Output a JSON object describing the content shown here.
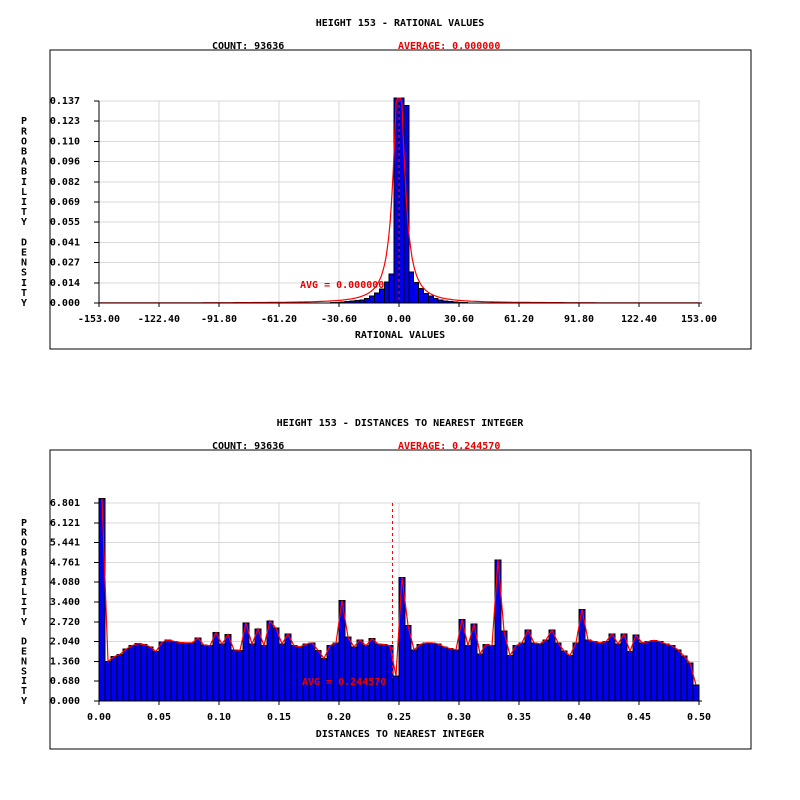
{
  "colors": {
    "background": "#ffffff",
    "bar_fill": "#0000ee",
    "bar_stroke": "#000000",
    "curve_red": "#ff0000",
    "accent_red": "#e80000",
    "grid_gray": "#d9d9d9",
    "axis_black": "#000000"
  },
  "chart_data": [
    {
      "type": "bar",
      "title": "HEIGHT 153 - RATIONAL VALUES",
      "count_label": "COUNT: 93636",
      "average_label": "AVERAGE: 0.000000",
      "avg_annotation": "AVG = 0.000000",
      "xlabel": "RATIONAL VALUES",
      "ylabel": "PROBABILITY DENSITY",
      "ylabel_words": [
        "PROBABILITY",
        "DENSITY"
      ],
      "x_ticks": [
        "-153.00",
        "-122.40",
        "-91.80",
        "-61.20",
        "-30.60",
        "0.00",
        "30.60",
        "61.20",
        "91.80",
        "122.40",
        "153.00"
      ],
      "y_ticks": [
        "0.137",
        "0.123",
        "0.110",
        "0.096",
        "0.082",
        "0.069",
        "0.055",
        "0.041",
        "0.027",
        "0.014",
        "0.000"
      ],
      "xlim": [
        -153,
        153
      ],
      "ylim": [
        0,
        0.137
      ],
      "grid": true,
      "legend": "none",
      "count": 93636,
      "average": 0.0,
      "bin_width": 2.5,
      "bars": [
        [
          -33.75,
          0.0003
        ],
        [
          -31.25,
          0.0005
        ],
        [
          -28.75,
          0.0007
        ],
        [
          -26.25,
          0.001
        ],
        [
          -23.75,
          0.0013
        ],
        [
          -21.25,
          0.0017
        ],
        [
          -18.75,
          0.0022
        ],
        [
          -16.25,
          0.003
        ],
        [
          -13.75,
          0.0046
        ],
        [
          -11.25,
          0.0068
        ],
        [
          -8.75,
          0.0095
        ],
        [
          -6.25,
          0.0142
        ],
        [
          -3.75,
          0.0196
        ],
        [
          -1.25,
          0.139
        ],
        [
          1.25,
          0.139
        ],
        [
          3.75,
          0.134
        ],
        [
          6.25,
          0.021
        ],
        [
          8.75,
          0.014
        ],
        [
          11.25,
          0.0098
        ],
        [
          13.75,
          0.0065
        ],
        [
          16.25,
          0.0046
        ],
        [
          18.75,
          0.0032
        ],
        [
          21.25,
          0.0022
        ],
        [
          23.75,
          0.0015
        ],
        [
          26.25,
          0.001
        ],
        [
          28.75,
          0.0007
        ],
        [
          31.25,
          0.0005
        ],
        [
          33.75,
          0.0003
        ]
      ],
      "curve": {
        "model": "cauchy",
        "amplitude": 0.165,
        "gamma": 3.2,
        "clip": 0.139,
        "follows_bars": false
      },
      "avg_line_x": 0.0
    },
    {
      "type": "bar",
      "title": "HEIGHT 153 - DISTANCES TO NEAREST INTEGER",
      "count_label": "COUNT: 93636",
      "average_label": "AVERAGE: 0.244570",
      "avg_annotation": "AVG = 0.244570",
      "xlabel": "DISTANCES TO NEAREST INTEGER",
      "ylabel": "PROBABILITY DENSITY",
      "ylabel_words": [
        "PROBABILITY",
        "DENSITY"
      ],
      "x_ticks": [
        "0.00",
        "0.05",
        "0.10",
        "0.15",
        "0.20",
        "0.25",
        "0.30",
        "0.35",
        "0.40",
        "0.45",
        "0.50"
      ],
      "y_ticks": [
        "6.801",
        "6.121",
        "5.441",
        "4.761",
        "4.080",
        "3.400",
        "2.720",
        "2.040",
        "1.360",
        "0.680",
        "0.000"
      ],
      "xlim": [
        0,
        0.5
      ],
      "ylim": [
        0,
        6.801
      ],
      "grid": true,
      "legend": "none",
      "count": 93636,
      "average": 0.24457,
      "bins_start": 0.0,
      "bin_width": 0.005,
      "values": [
        6.95,
        1.36,
        1.52,
        1.6,
        1.78,
        1.9,
        1.97,
        1.94,
        1.86,
        1.7,
        2.02,
        2.1,
        2.05,
        2.01,
        2.0,
        2.0,
        2.16,
        1.92,
        1.9,
        2.35,
        1.95,
        2.28,
        1.76,
        1.74,
        2.68,
        1.95,
        2.48,
        1.9,
        2.75,
        2.5,
        1.96,
        2.3,
        1.9,
        1.86,
        1.95,
        2.0,
        1.74,
        1.46,
        1.9,
        2.0,
        3.45,
        2.2,
        1.86,
        2.1,
        1.9,
        2.14,
        1.96,
        1.94,
        1.9,
        0.86,
        4.25,
        2.6,
        1.76,
        1.94,
        2.0,
        2.0,
        1.96,
        1.86,
        1.8,
        1.76,
        2.8,
        1.9,
        2.64,
        1.62,
        1.94,
        1.9,
        4.85,
        2.4,
        1.56,
        1.9,
        2.0,
        2.44,
        2.0,
        1.96,
        2.1,
        2.44,
        2.0,
        1.72,
        1.56,
        2.0,
        3.15,
        2.1,
        2.04,
        2.0,
        2.04,
        2.3,
        1.96,
        2.3,
        1.7,
        2.26,
        2.0,
        2.04,
        2.08,
        2.04,
        1.96,
        1.9,
        1.76,
        1.55,
        1.3,
        0.55
      ],
      "curve": {
        "follows_bars": true
      },
      "avg_line_x": 0.24457
    }
  ]
}
